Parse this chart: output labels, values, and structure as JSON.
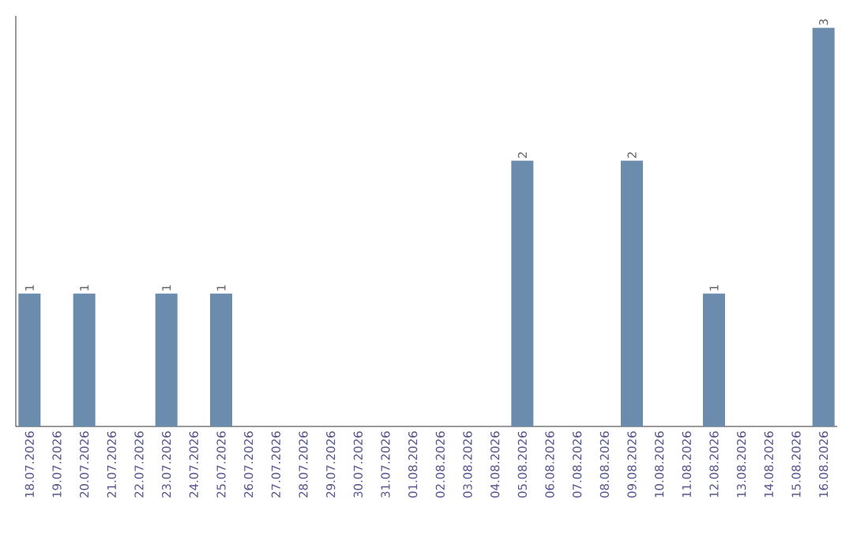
{
  "chart_data": {
    "type": "bar",
    "categories": [
      "18.07.2026",
      "19.07.2026",
      "20.07.2026",
      "21.07.2026",
      "22.07.2026",
      "23.07.2026",
      "24.07.2026",
      "25.07.2026",
      "26.07.2026",
      "27.07.2026",
      "28.07.2026",
      "29.07.2026",
      "30.07.2026",
      "31.07.2026",
      "01.08.2026",
      "02.08.2026",
      "03.08.2026",
      "04.08.2026",
      "05.08.2026",
      "06.08.2026",
      "07.08.2026",
      "08.08.2026",
      "09.08.2026",
      "10.08.2026",
      "11.08.2026",
      "12.08.2026",
      "13.08.2026",
      "14.08.2026",
      "15.08.2026",
      "16.08.2026"
    ],
    "values": [
      1,
      0,
      1,
      0,
      0,
      1,
      0,
      1,
      0,
      0,
      0,
      0,
      0,
      0,
      0,
      0,
      0,
      0,
      2,
      0,
      0,
      0,
      2,
      0,
      0,
      1,
      0,
      0,
      0,
      3
    ],
    "value_labels": [
      "1",
      null,
      "1",
      null,
      null,
      "1",
      null,
      "1",
      null,
      null,
      null,
      null,
      null,
      null,
      null,
      null,
      null,
      null,
      "2",
      null,
      null,
      null,
      "2",
      null,
      null,
      "1",
      null,
      null,
      null,
      "3"
    ],
    "color": "#6b8cad",
    "tick_labels": "x"
  }
}
